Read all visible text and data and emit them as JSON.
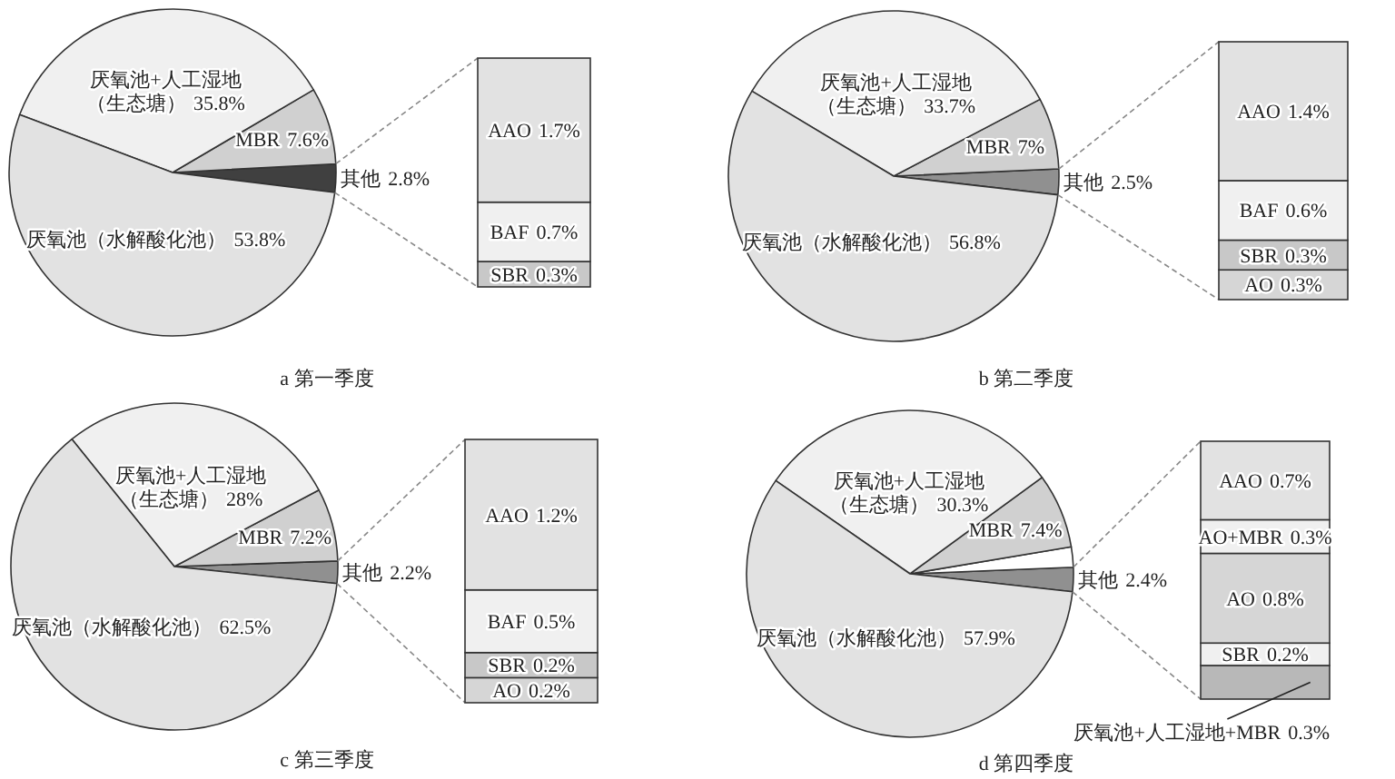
{
  "chart_data": [
    {
      "type": "pie",
      "title": "a 第一季度",
      "categories": [
        "其他",
        "MBR",
        "厌氧池+人工湿地（生态塘）",
        "厌氧池（水解酸化池）"
      ],
      "values": [
        2.8,
        7.6,
        35.8,
        53.8
      ],
      "colors": [
        "#404040",
        "#d0d0d0",
        "#f0f0f0",
        "#e2e2e2"
      ],
      "value_labels": [
        "2.8%",
        "7.6%",
        "35.8%",
        "53.8%"
      ]
    },
    {
      "type": "bar",
      "stacked": true,
      "categories": [
        null
      ],
      "series": [
        {
          "name": "SBR",
          "color": "#c8c8c8",
          "values": [
            0.3
          ],
          "value_labels": [
            "0.3%"
          ]
        },
        {
          "name": "BAF",
          "color": "#f0f0f0",
          "values": [
            0.7
          ],
          "value_labels": [
            "0.7%"
          ]
        },
        {
          "name": "AAO",
          "color": "#e2e2e2",
          "values": [
            1.7
          ],
          "value_labels": [
            "1.7%"
          ]
        }
      ]
    },
    {
      "type": "pie",
      "title": "b 第二季度",
      "categories": [
        "其他",
        "MBR",
        "厌氧池+人工湿地（生态塘）",
        "厌氧池（水解酸化池）"
      ],
      "values": [
        2.5,
        7,
        33.7,
        56.8
      ],
      "colors": [
        "#909090",
        "#d0d0d0",
        "#f0f0f0",
        "#e2e2e2"
      ],
      "value_labels": [
        "2.5%",
        "7%",
        "33.7%",
        "56.8%"
      ]
    },
    {
      "type": "bar",
      "stacked": true,
      "categories": [
        null
      ],
      "series": [
        {
          "name": "AO",
          "color": "#d6d6d6",
          "values": [
            0.3
          ],
          "value_labels": [
            "0.3%"
          ]
        },
        {
          "name": "SBR",
          "color": "#c8c8c8",
          "values": [
            0.3
          ],
          "value_labels": [
            "0.3%"
          ]
        },
        {
          "name": "BAF",
          "color": "#f0f0f0",
          "values": [
            0.6
          ],
          "value_labels": [
            "0.6%"
          ]
        },
        {
          "name": "AAO",
          "color": "#e2e2e2",
          "values": [
            1.4
          ],
          "value_labels": [
            "1.4%"
          ]
        }
      ]
    },
    {
      "type": "pie",
      "title": "c 第三季度",
      "categories": [
        "其他",
        "MBR",
        "厌氧池+人工湿地（生态塘）",
        "厌氧池（水解酸化池）"
      ],
      "values": [
        2.2,
        7.2,
        28,
        62.5
      ],
      "colors": [
        "#909090",
        "#d0d0d0",
        "#f0f0f0",
        "#e2e2e2"
      ],
      "value_labels": [
        "2.2%",
        "7.2%",
        "28%",
        "62.5%"
      ]
    },
    {
      "type": "bar",
      "stacked": true,
      "categories": [
        null
      ],
      "series": [
        {
          "name": "AO",
          "color": "#d6d6d6",
          "values": [
            0.2
          ],
          "value_labels": [
            "0.2%"
          ]
        },
        {
          "name": "SBR",
          "color": "#c8c8c8",
          "values": [
            0.2
          ],
          "value_labels": [
            "0.2%"
          ]
        },
        {
          "name": "BAF",
          "color": "#f0f0f0",
          "values": [
            0.5
          ],
          "value_labels": [
            "0.5%"
          ]
        },
        {
          "name": "AAO",
          "color": "#e2e2e2",
          "values": [
            1.2
          ],
          "value_labels": [
            "1.2%"
          ]
        }
      ]
    },
    {
      "type": "pie",
      "title": "d 第四季度",
      "categories": [
        "其他",
        null,
        "MBR",
        "厌氧池+人工湿地（生态塘）",
        "厌氧池（水解酸化池）"
      ],
      "values": [
        2.4,
        2.0,
        7.4,
        30.3,
        57.9
      ],
      "colors": [
        "#909090",
        "#ffffff",
        "#d0d0d0",
        "#f0f0f0",
        "#e2e2e2"
      ],
      "value_labels": [
        "2.4%",
        null,
        "7.4%",
        "30.3%",
        "57.9%"
      ]
    },
    {
      "type": "bar",
      "stacked": true,
      "categories": [
        null
      ],
      "series": [
        {
          "name": "厌氧池+人工湿地+MBR",
          "color": "#b8b8b8",
          "values": [
            0.3
          ],
          "value_labels": [
            "0.3%"
          ]
        },
        {
          "name": "SBR",
          "color": "#f0f0f0",
          "values": [
            0.2
          ],
          "value_labels": [
            "0.2%"
          ]
        },
        {
          "name": "AO",
          "color": "#d6d6d6",
          "values": [
            0.8
          ],
          "value_labels": [
            "0.8%"
          ]
        },
        {
          "name": "AO+MBR",
          "color": "#f0f0f0",
          "values": [
            0.3
          ],
          "value_labels": [
            "0.3%"
          ]
        },
        {
          "name": "AAO",
          "color": "#e2e2e2",
          "values": [
            0.7
          ],
          "value_labels": [
            "0.7%"
          ]
        }
      ]
    }
  ]
}
